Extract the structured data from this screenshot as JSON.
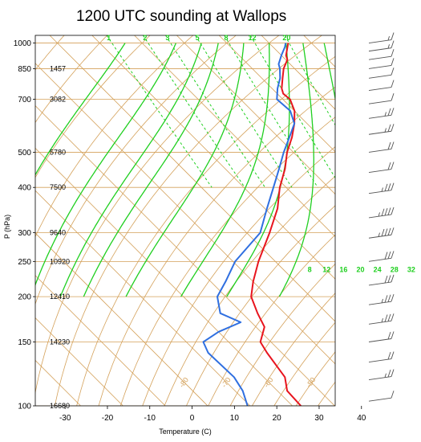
{
  "chart_data": {
    "type": "line",
    "title": "1200 UTC sounding at Wallops",
    "xlabel": "Temperature (C)",
    "ylabel": "P (hPa)",
    "xlim": [
      -35,
      50
    ],
    "ylim": [
      1050,
      100
    ],
    "y_scale": "log",
    "x_ticks": [
      "-30",
      "-20",
      "-10",
      "0",
      "10",
      "20",
      "30",
      "40"
    ],
    "pressure_levels": [
      {
        "p": 100,
        "label": "100",
        "height": "16680"
      },
      {
        "p": 150,
        "label": "150",
        "height": "14230"
      },
      {
        "p": 200,
        "label": "200",
        "height": "12410"
      },
      {
        "p": 250,
        "label": "250",
        "height": "10920"
      },
      {
        "p": 300,
        "label": "300",
        "height": "9640"
      },
      {
        "p": 400,
        "label": "400",
        "height": "7500"
      },
      {
        "p": 500,
        "label": "500",
        "height": "5780"
      },
      {
        "p": 700,
        "label": "700",
        "height": "3082"
      },
      {
        "p": 850,
        "label": "850",
        "height": "1457"
      },
      {
        "p": 1000,
        "label": "1000",
        "height": ""
      }
    ],
    "isotherm_labels": [
      "-80",
      "-70",
      "-60",
      "-50",
      "-40",
      "-30",
      "-20",
      "-10",
      "0",
      "10",
      "20",
      "30"
    ],
    "moist_adiabat_labels": [
      "8",
      "12",
      "16",
      "20",
      "24",
      "28",
      "32"
    ],
    "mixing_ratio_labels": [
      "1",
      "2",
      "3",
      "5",
      "8",
      "12",
      "20"
    ],
    "colors": {
      "temperature": "#e8141e",
      "dewpoint": "#2f6fe0",
      "moist_adiabat": "#1fcf1f",
      "background_lines": "#d4a15a",
      "wind_barb": "#555555"
    },
    "series": [
      {
        "key": "temperature",
        "points": [
          [
            1000,
            24.5
          ],
          [
            975,
            23.4
          ],
          [
            925,
            21.1
          ],
          [
            900,
            20.4
          ],
          [
            850,
            17.4
          ],
          [
            800,
            14.9
          ],
          [
            750,
            12.3
          ],
          [
            725,
            11.4
          ],
          [
            700,
            11.7
          ],
          [
            650,
            10.0
          ],
          [
            600,
            7.0
          ],
          [
            550,
            3.2
          ],
          [
            500,
            -1.5
          ],
          [
            450,
            -5.9
          ],
          [
            400,
            -11.5
          ],
          [
            350,
            -17.0
          ],
          [
            300,
            -24.6
          ],
          [
            250,
            -34.0
          ],
          [
            220,
            -40.0
          ],
          [
            200,
            -44.0
          ],
          [
            180,
            -46.4
          ],
          [
            165,
            -48.0
          ],
          [
            150,
            -52.5
          ],
          [
            140,
            -53.5
          ],
          [
            120,
            -55.0
          ],
          [
            110,
            -57.7
          ],
          [
            100,
            -58.0
          ]
        ]
      },
      {
        "key": "dewpoint",
        "points": [
          [
            1000,
            23.9
          ],
          [
            975,
            22.8
          ],
          [
            925,
            20.0
          ],
          [
            875,
            17.3
          ],
          [
            850,
            16.5
          ],
          [
            800,
            14.3
          ],
          [
            750,
            11.3
          ],
          [
            700,
            8.6
          ],
          [
            650,
            9.0
          ],
          [
            600,
            7.0
          ],
          [
            550,
            2.6
          ],
          [
            500,
            -2.3
          ],
          [
            450,
            -7.3
          ],
          [
            400,
            -13.0
          ],
          [
            350,
            -19.5
          ],
          [
            300,
            -26.8
          ],
          [
            250,
            -39.5
          ],
          [
            220,
            -46.5
          ],
          [
            200,
            -52.0
          ],
          [
            180,
            -55.2
          ],
          [
            170,
            -52.5
          ],
          [
            160,
            -60.0
          ],
          [
            150,
            -66.0
          ],
          [
            140,
            -67.4
          ],
          [
            120,
            -67.0
          ],
          [
            110,
            -68.2
          ],
          [
            100,
            -70.6
          ]
        ]
      }
    ],
    "wind_barbs": [
      {
        "p": 103,
        "speed_kt": 10
      },
      {
        "p": 118,
        "speed_kt": 15
      },
      {
        "p": 132,
        "speed_kt": 20
      },
      {
        "p": 150,
        "speed_kt": 20
      },
      {
        "p": 168,
        "speed_kt": 25
      },
      {
        "p": 190,
        "speed_kt": 25
      },
      {
        "p": 215,
        "speed_kt": 30
      },
      {
        "p": 250,
        "speed_kt": 30
      },
      {
        "p": 290,
        "speed_kt": 35
      },
      {
        "p": 330,
        "speed_kt": 35
      },
      {
        "p": 385,
        "speed_kt": 25
      },
      {
        "p": 440,
        "speed_kt": 20
      },
      {
        "p": 500,
        "speed_kt": 20
      },
      {
        "p": 560,
        "speed_kt": 15
      },
      {
        "p": 620,
        "speed_kt": 15
      },
      {
        "p": 680,
        "speed_kt": 10
      },
      {
        "p": 740,
        "speed_kt": 10
      },
      {
        "p": 800,
        "speed_kt": 10
      },
      {
        "p": 850,
        "speed_kt": 10
      },
      {
        "p": 900,
        "speed_kt": 10
      },
      {
        "p": 950,
        "speed_kt": 5
      },
      {
        "p": 1000,
        "speed_kt": 5
      }
    ]
  }
}
